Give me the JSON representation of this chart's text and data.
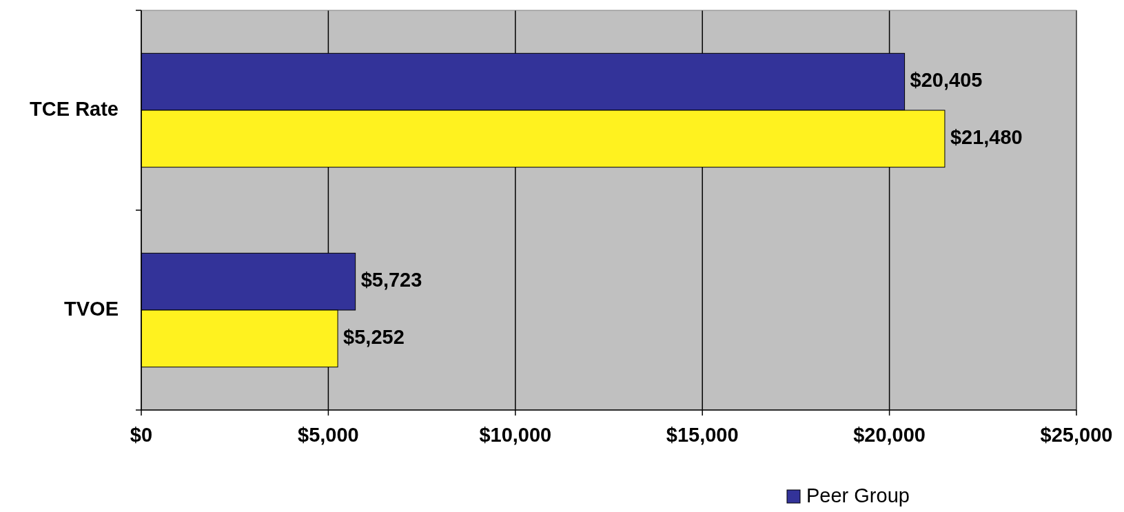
{
  "chart_data": {
    "type": "bar",
    "orientation": "horizontal",
    "categories": [
      "TCE Rate",
      "TVOE"
    ],
    "series": [
      {
        "name": "Peer Group",
        "color": "#333399",
        "values": [
          20405,
          5723
        ],
        "value_labels": [
          "$20,405",
          "$5,723"
        ]
      },
      {
        "color": "#fff21f",
        "values": [
          21480,
          5252
        ],
        "value_labels": [
          "$21,480",
          "$5,252"
        ]
      }
    ],
    "xlim": [
      0,
      25000
    ],
    "xticks": [
      {
        "value": 0,
        "label": "$0"
      },
      {
        "value": 5000,
        "label": "$5,000"
      },
      {
        "value": 10000,
        "label": "$10,000"
      },
      {
        "value": 15000,
        "label": "$15,000"
      },
      {
        "value": 20000,
        "label": "$20,000"
      },
      {
        "value": 25000,
        "label": "$25,000"
      }
    ],
    "grid": "x",
    "legend": "bottom"
  }
}
